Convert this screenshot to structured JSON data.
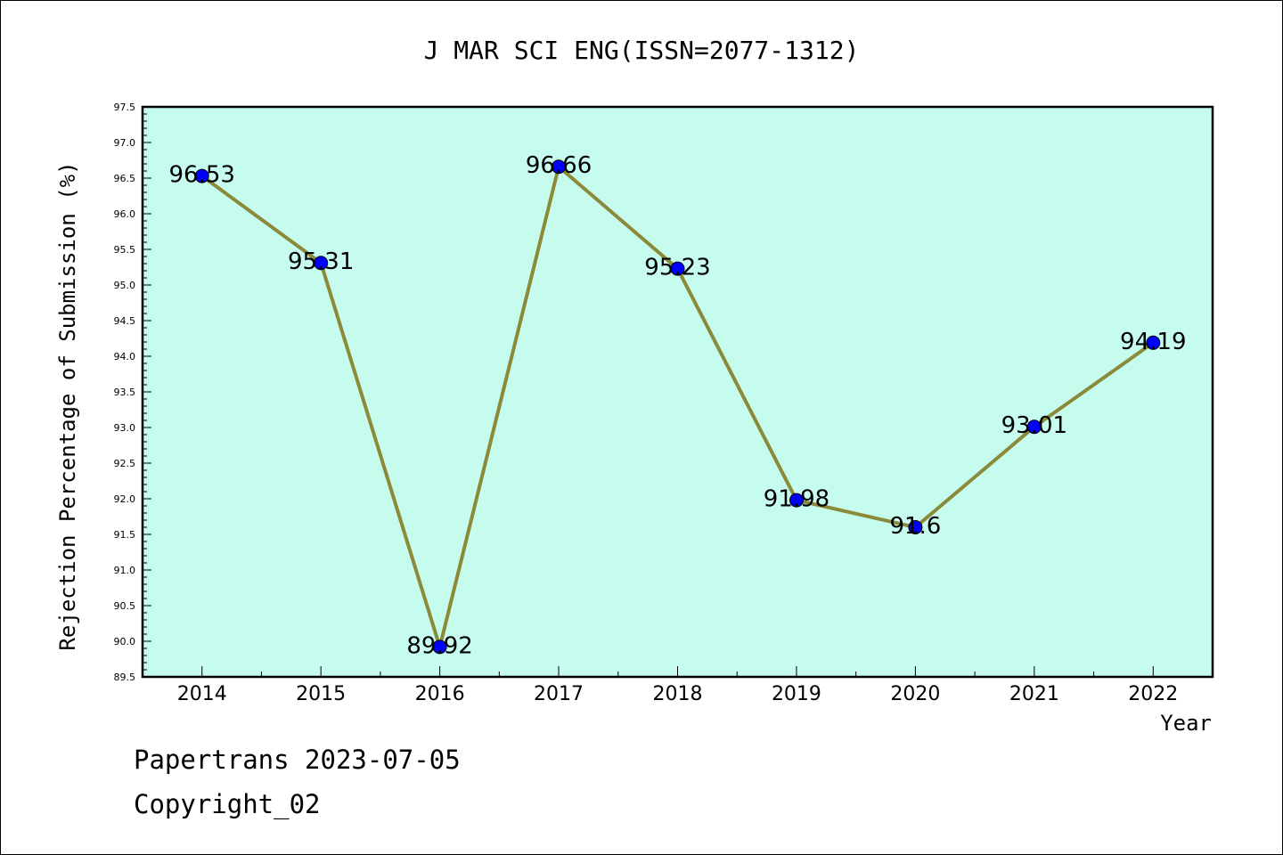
{
  "chart_data": {
    "type": "line",
    "title": "J MAR SCI ENG(ISSN=2077-1312)",
    "xlabel": "Year",
    "ylabel": "Rejection Percentage of Submission (%)",
    "categories": [
      "2014",
      "2015",
      "2016",
      "2017",
      "2018",
      "2019",
      "2020",
      "2021",
      "2022"
    ],
    "values": [
      96.53,
      95.31,
      89.92,
      96.66,
      95.23,
      91.98,
      91.6,
      93.01,
      94.19
    ],
    "data_labels": [
      "96.53",
      "95.31",
      "89.92",
      "96.66",
      "95.23",
      "91.98",
      "91.6",
      "93.01",
      "94.19"
    ],
    "ylim": [
      89.5,
      97.5
    ],
    "yticks": [
      "89.5",
      "90.0",
      "90.5",
      "91.0",
      "91.5",
      "92.0",
      "92.5",
      "93.0",
      "93.5",
      "94.0",
      "94.5",
      "95.0",
      "95.5",
      "96.0",
      "96.5",
      "97.0",
      "97.5"
    ],
    "grid": false,
    "legend": "none",
    "colors": {
      "plot_background": "#c6fcee",
      "line": "#8b8a3a",
      "marker": "#0000ff"
    }
  },
  "footer": {
    "line1": "Papertrans 2023-07-05",
    "line2": "Copyright_02"
  }
}
